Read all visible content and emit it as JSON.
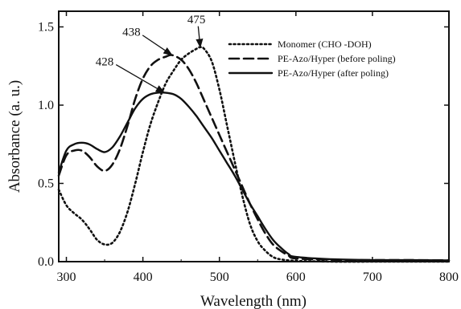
{
  "chart_data": {
    "type": "line",
    "title": "",
    "xlabel": "Wavelength (nm)",
    "ylabel": "Absorbance (a. u.)",
    "xlim": [
      290,
      800
    ],
    "ylim": [
      0.0,
      1.6
    ],
    "xticks": [
      300,
      400,
      500,
      600,
      700,
      800
    ],
    "yticks": [
      0.0,
      0.5,
      1.0,
      1.5
    ],
    "xtick_labels": [
      "300",
      "400",
      "500",
      "600",
      "700",
      "800"
    ],
    "ytick_labels": [
      "0.0",
      "0.5",
      "1.0",
      "1.5"
    ],
    "grid": false,
    "legend_position": "top-right",
    "series": [
      {
        "name": "Monomer (CHO -DOH)",
        "style": "dotted",
        "color": "#111111",
        "points": [
          [
            290,
            0.46
          ],
          [
            300,
            0.36
          ],
          [
            310,
            0.31
          ],
          [
            320,
            0.27
          ],
          [
            330,
            0.21
          ],
          [
            340,
            0.14
          ],
          [
            350,
            0.11
          ],
          [
            360,
            0.12
          ],
          [
            370,
            0.19
          ],
          [
            380,
            0.32
          ],
          [
            390,
            0.5
          ],
          [
            400,
            0.7
          ],
          [
            410,
            0.88
          ],
          [
            420,
            1.02
          ],
          [
            430,
            1.14
          ],
          [
            440,
            1.22
          ],
          [
            450,
            1.29
          ],
          [
            460,
            1.33
          ],
          [
            470,
            1.36
          ],
          [
            475,
            1.37
          ],
          [
            480,
            1.36
          ],
          [
            490,
            1.28
          ],
          [
            500,
            1.1
          ],
          [
            510,
            0.87
          ],
          [
            520,
            0.64
          ],
          [
            530,
            0.42
          ],
          [
            540,
            0.24
          ],
          [
            550,
            0.13
          ],
          [
            560,
            0.07
          ],
          [
            570,
            0.03
          ],
          [
            580,
            0.015
          ],
          [
            600,
            0.005
          ],
          [
            650,
            0.0
          ],
          [
            700,
            0.0
          ],
          [
            750,
            0.0
          ],
          [
            800,
            0.0
          ]
        ]
      },
      {
        "name": "PE-Azo/Hyper (before poling)",
        "style": "dashed",
        "color": "#111111",
        "points": [
          [
            290,
            0.55
          ],
          [
            300,
            0.68
          ],
          [
            310,
            0.71
          ],
          [
            320,
            0.71
          ],
          [
            330,
            0.67
          ],
          [
            340,
            0.61
          ],
          [
            350,
            0.58
          ],
          [
            360,
            0.62
          ],
          [
            370,
            0.72
          ],
          [
            380,
            0.87
          ],
          [
            390,
            1.04
          ],
          [
            400,
            1.17
          ],
          [
            410,
            1.25
          ],
          [
            420,
            1.29
          ],
          [
            430,
            1.31
          ],
          [
            438,
            1.32
          ],
          [
            450,
            1.29
          ],
          [
            460,
            1.23
          ],
          [
            470,
            1.14
          ],
          [
            480,
            1.03
          ],
          [
            490,
            0.92
          ],
          [
            500,
            0.81
          ],
          [
            510,
            0.7
          ],
          [
            520,
            0.59
          ],
          [
            530,
            0.48
          ],
          [
            540,
            0.37
          ],
          [
            550,
            0.27
          ],
          [
            560,
            0.18
          ],
          [
            570,
            0.11
          ],
          [
            580,
            0.07
          ],
          [
            590,
            0.04
          ],
          [
            600,
            0.02
          ],
          [
            650,
            0.012
          ],
          [
            700,
            0.01
          ],
          [
            750,
            0.01
          ],
          [
            800,
            0.008
          ]
        ]
      },
      {
        "name": "PE-Azo/Hyper (after poling)",
        "style": "solid",
        "color": "#111111",
        "points": [
          [
            290,
            0.57
          ],
          [
            300,
            0.71
          ],
          [
            310,
            0.75
          ],
          [
            320,
            0.76
          ],
          [
            330,
            0.75
          ],
          [
            340,
            0.72
          ],
          [
            350,
            0.7
          ],
          [
            360,
            0.73
          ],
          [
            370,
            0.8
          ],
          [
            380,
            0.89
          ],
          [
            390,
            0.98
          ],
          [
            400,
            1.04
          ],
          [
            410,
            1.07
          ],
          [
            420,
            1.08
          ],
          [
            428,
            1.08
          ],
          [
            440,
            1.07
          ],
          [
            450,
            1.04
          ],
          [
            460,
            0.99
          ],
          [
            470,
            0.93
          ],
          [
            480,
            0.86
          ],
          [
            490,
            0.79
          ],
          [
            500,
            0.71
          ],
          [
            510,
            0.63
          ],
          [
            520,
            0.55
          ],
          [
            530,
            0.46
          ],
          [
            540,
            0.37
          ],
          [
            550,
            0.29
          ],
          [
            560,
            0.21
          ],
          [
            570,
            0.14
          ],
          [
            580,
            0.09
          ],
          [
            590,
            0.05
          ],
          [
            600,
            0.03
          ],
          [
            650,
            0.015
          ],
          [
            700,
            0.01
          ],
          [
            750,
            0.01
          ],
          [
            800,
            0.008
          ]
        ]
      }
    ],
    "annotations": [
      {
        "text": "428",
        "arrow_to": [
          428,
          1.08
        ],
        "label_at": [
          350,
          1.28
        ]
      },
      {
        "text": "438",
        "arrow_to": [
          438,
          1.32
        ],
        "label_at": [
          385,
          1.47
        ]
      },
      {
        "text": "475",
        "arrow_to": [
          475,
          1.37
        ],
        "label_at": [
          470,
          1.55
        ]
      }
    ]
  }
}
